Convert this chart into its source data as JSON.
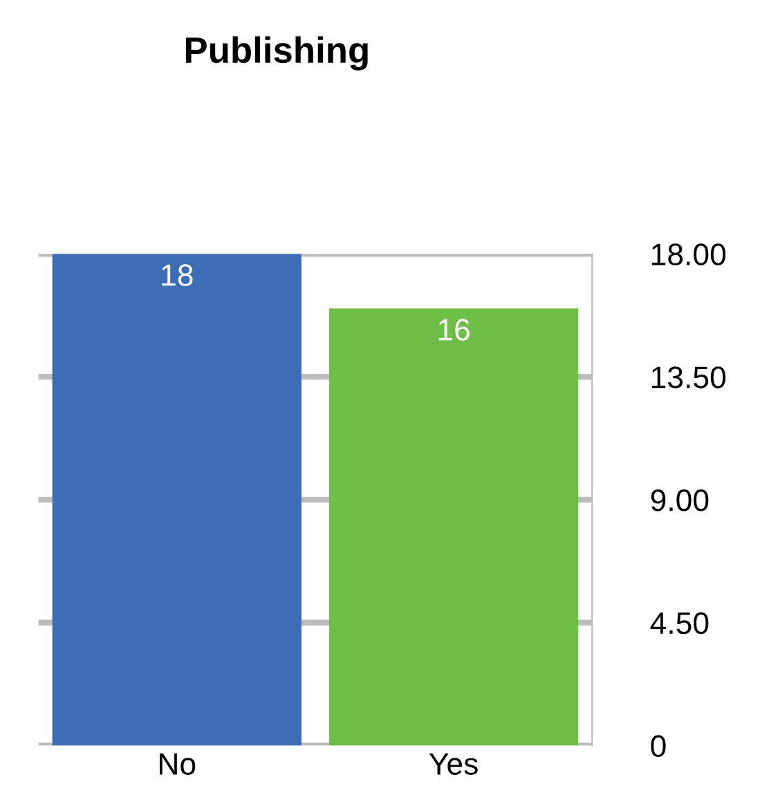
{
  "chart_data": {
    "type": "bar",
    "title": "Publishing",
    "categories": [
      "No",
      "Yes"
    ],
    "values": [
      18,
      16
    ],
    "colors": [
      "#3d6db5",
      "#6fbe47"
    ],
    "ylim": [
      0,
      18
    ],
    "yticks": [
      0,
      {
        "value": 4.5,
        "label": "4.50"
      },
      {
        "value": 9,
        "label": "9.00"
      },
      {
        "value": 13.5,
        "label": "13.50"
      },
      {
        "value": 18,
        "label": "18.00"
      }
    ],
    "grid": "y",
    "data_labels": true
  }
}
